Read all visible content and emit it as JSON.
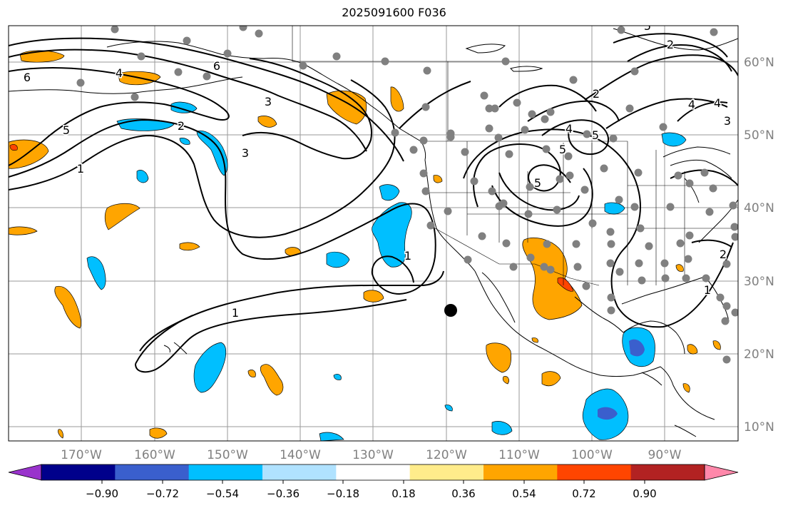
{
  "title": "2025091600 F036",
  "colors": {
    "land_line": "#000000",
    "grid": "#9a9a9a",
    "station": "#808080",
    "contour": "#000000",
    "tick_label": "#808080"
  },
  "lon_ticks": [
    "170°W",
    "160°W",
    "150°W",
    "140°W",
    "130°W",
    "120°W",
    "110°W",
    "100°W",
    "90°W"
  ],
  "lat_ticks": [
    "60°N",
    "50°N",
    "40°N",
    "30°N",
    "20°N",
    "10°N"
  ],
  "contour_labels": [
    "6",
    "4",
    "6",
    "5",
    "3",
    "2",
    "2",
    "5",
    "4",
    "1",
    "5",
    "1",
    "4",
    "5",
    "3",
    "4",
    "1",
    "2",
    "3",
    "1",
    "5",
    "2"
  ],
  "colorbar": {
    "colors": [
      "#9933cc",
      "#00008b",
      "#3a5fcd",
      "#00bfff",
      "#b0e2ff",
      "#ffffff",
      "#ffec8b",
      "#ffa500",
      "#ff4500",
      "#b22222",
      "#ff88aa"
    ],
    "tick_labels": [
      "−0.90",
      "−0.72",
      "−0.54",
      "−0.36",
      "−0.18",
      "0.18",
      "0.36",
      "0.54",
      "0.72",
      "0.90"
    ]
  }
}
